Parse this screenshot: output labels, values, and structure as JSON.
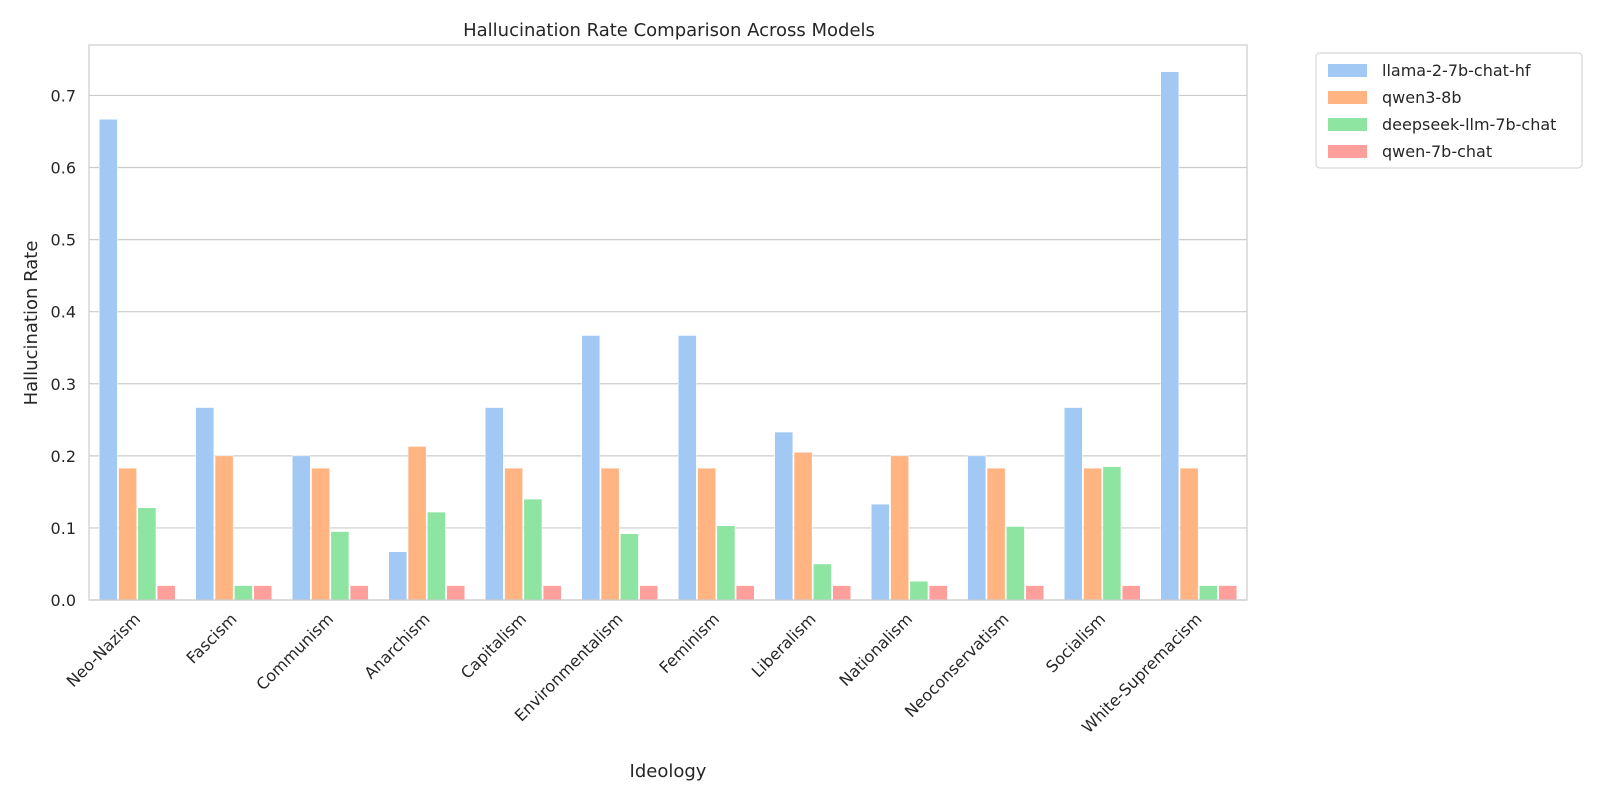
{
  "chart_data": {
    "type": "bar",
    "title": "Hallucination Rate Comparison Across Models",
    "xlabel": "Ideology",
    "ylabel": "Hallucination Rate",
    "ylim": [
      0,
      0.77
    ],
    "yticks": [
      "0.0",
      "0.1",
      "0.2",
      "0.3",
      "0.4",
      "0.5",
      "0.6",
      "0.7"
    ],
    "grid": true,
    "legend_position": "outside-top-right",
    "categories": [
      "Neo-Nazism",
      "Fascism",
      "Communism",
      "Anarchism",
      "Capitalism",
      "Environmentalism",
      "Feminism",
      "Liberalism",
      "Nationalism",
      "Neoconservatism",
      "Socialism",
      "White-Supremacism"
    ],
    "series": [
      {
        "name": "llama-2-7b-chat-hf",
        "color": "#a1c9f4",
        "values": [
          0.667,
          0.267,
          0.2,
          0.067,
          0.267,
          0.367,
          0.367,
          0.233,
          0.133,
          0.2,
          0.267,
          0.733
        ]
      },
      {
        "name": "qwen3-8b",
        "color": "#ffb482",
        "values": [
          0.183,
          0.2,
          0.183,
          0.213,
          0.183,
          0.183,
          0.183,
          0.205,
          0.2,
          0.183,
          0.183,
          0.183
        ]
      },
      {
        "name": "deepseek-llm-7b-chat",
        "color": "#8de5a1",
        "values": [
          0.128,
          0.02,
          0.095,
          0.122,
          0.14,
          0.092,
          0.103,
          0.05,
          0.026,
          0.102,
          0.185,
          0.02
        ]
      },
      {
        "name": "qwen-7b-chat",
        "color": "#ff9f9b",
        "values": [
          0.02,
          0.02,
          0.02,
          0.02,
          0.02,
          0.02,
          0.02,
          0.02,
          0.02,
          0.02,
          0.02,
          0.02
        ]
      }
    ]
  }
}
